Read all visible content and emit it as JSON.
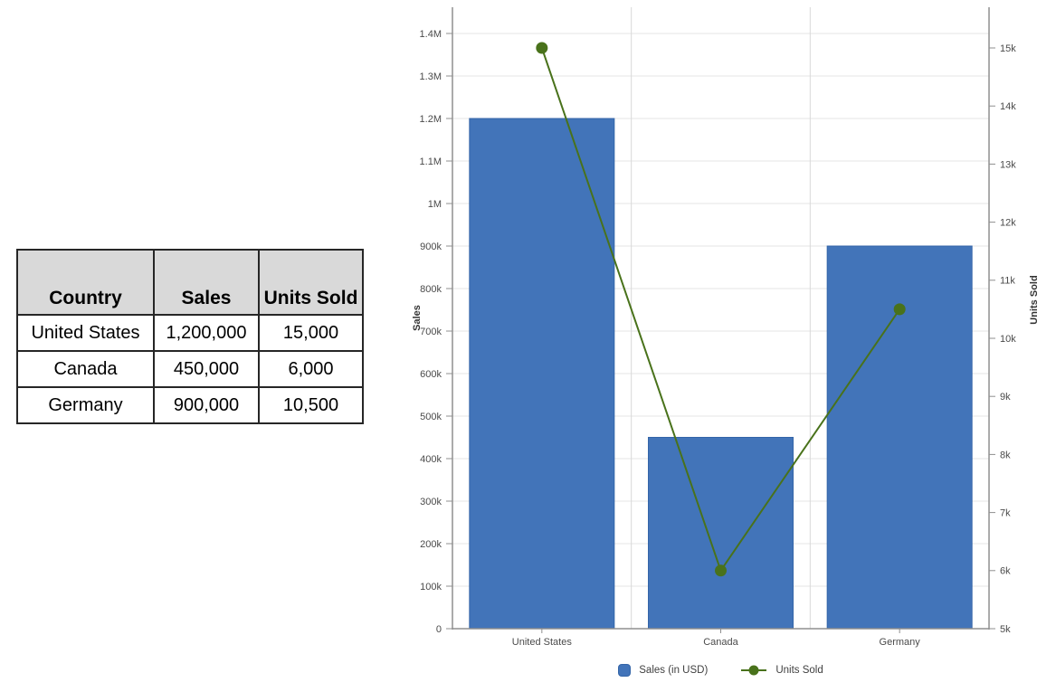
{
  "table": {
    "columns": [
      "Country",
      "Sales",
      "Units Sold"
    ],
    "rows": [
      [
        "United States",
        "1,200,000",
        "15,000"
      ],
      [
        "Canada",
        "450,000",
        "6,000"
      ],
      [
        "Germany",
        "900,000",
        "10,500"
      ]
    ]
  },
  "chart_data": {
    "type": "bar",
    "subtype": "combo-bar-line-dual-axis",
    "categories": [
      "United States",
      "Canada",
      "Germany"
    ],
    "series": [
      {
        "name": "Sales (in USD)",
        "type": "bar",
        "axis": "left",
        "values": [
          1200000,
          450000,
          900000
        ],
        "color": "#4274b9",
        "border_color": "#3465a8"
      },
      {
        "name": "Units Sold",
        "type": "line",
        "axis": "right",
        "values": [
          15000,
          6000,
          10500
        ],
        "color": "#49721b"
      }
    ],
    "left_axis": {
      "label": "Sales",
      "min": 0,
      "max": 1400000,
      "tick_step": 100000,
      "tick_labels": [
        "0",
        "100k",
        "200k",
        "300k",
        "400k",
        "500k",
        "600k",
        "700k",
        "800k",
        "900k",
        "1M",
        "1.1M",
        "1.2M",
        "1.3M",
        "1.4M"
      ]
    },
    "right_axis": {
      "label": "Units Sold",
      "min": 5000,
      "max": 15000,
      "tick_step": 1000,
      "tick_labels": [
        "5k",
        "6k",
        "7k",
        "8k",
        "9k",
        "10k",
        "11k",
        "12k",
        "13k",
        "14k",
        "15k"
      ]
    },
    "legend": [
      {
        "label": "Sales (in USD)",
        "swatch": "rounded-square",
        "color": "#4274b9"
      },
      {
        "label": "Units Sold",
        "swatch": "line-dot",
        "color": "#49721b"
      }
    ],
    "grid": true,
    "legend_position": "bottom",
    "colors": {
      "grid_h": "#e4e4e4",
      "grid_v": "#d9d9d9",
      "axis": "#8f8f8f",
      "tick_text": "#4a4a4a",
      "axis_title": "#333333"
    }
  }
}
